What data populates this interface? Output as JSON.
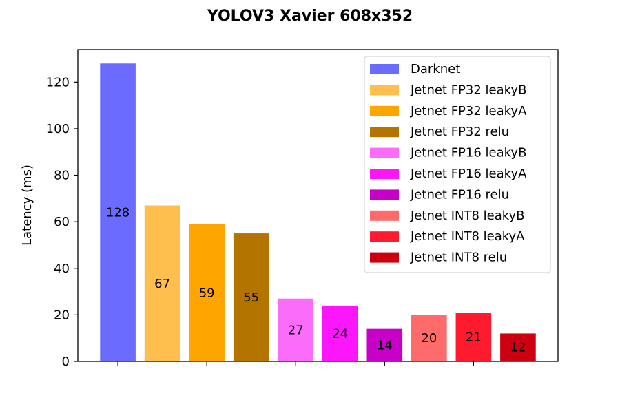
{
  "chart_data": {
    "type": "bar",
    "title": "YOLOV3 Xavier 608x352",
    "xlabel": "",
    "ylabel": "Latency (ms)",
    "ylim": [
      0,
      134
    ],
    "yticks": [
      0,
      20,
      40,
      60,
      80,
      100,
      120
    ],
    "x_tick_marks": [
      1,
      3,
      5,
      7,
      9
    ],
    "legend_position": "top-right",
    "grid": false,
    "series": [
      {
        "name": "Darknet",
        "value": 128,
        "color": "#6b6bff"
      },
      {
        "name": "Jetnet FP32 leakyB",
        "value": 67,
        "color": "#ffbf4f"
      },
      {
        "name": "Jetnet FP32 leakyA",
        "value": 59,
        "color": "#ffa500"
      },
      {
        "name": "Jetnet FP32 relu",
        "value": 55,
        "color": "#b37400"
      },
      {
        "name": "Jetnet FP16 leakyB",
        "value": 27,
        "color": "#fb6cfb"
      },
      {
        "name": "Jetnet FP16 leakyA",
        "value": 24,
        "color": "#fb16fb"
      },
      {
        "name": "Jetnet FP16 relu",
        "value": 14,
        "color": "#c700c7"
      },
      {
        "name": "Jetnet INT8 leakyB",
        "value": 20,
        "color": "#ff6b6b"
      },
      {
        "name": "Jetnet INT8 leakyA",
        "value": 21,
        "color": "#ff1a2d"
      },
      {
        "name": "Jetnet INT8 relu",
        "value": 12,
        "color": "#cc0011"
      }
    ]
  }
}
